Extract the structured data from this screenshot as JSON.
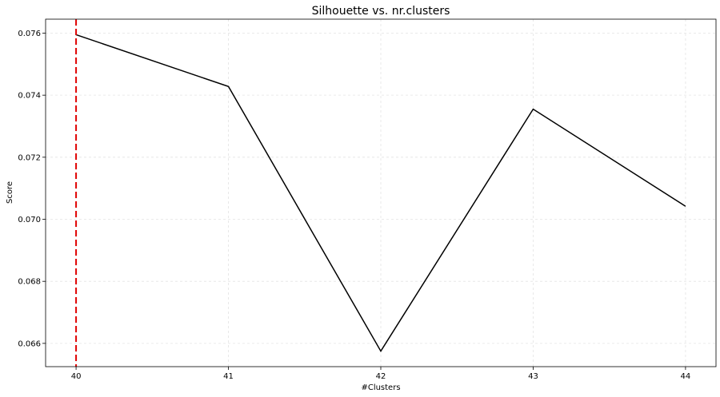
{
  "chart_data": {
    "type": "line",
    "title": "Silhouette vs. nr.clusters",
    "xlabel": "#Clusters",
    "ylabel": "Score",
    "x": [
      40,
      41,
      42,
      43,
      44
    ],
    "series": [
      {
        "values": [
          0.07595,
          0.07428,
          0.06575,
          0.07355,
          0.07042
        ],
        "color": "#000000"
      }
    ],
    "xticks": [
      40,
      41,
      42,
      43,
      44
    ],
    "xtick_labels": [
      "40",
      "41",
      "42",
      "43",
      "44"
    ],
    "yticks": [
      0.066,
      0.068,
      0.07,
      0.072,
      0.074,
      0.076
    ],
    "ytick_labels": [
      "0.066",
      "0.068",
      "0.070",
      "0.072",
      "0.074",
      "0.076"
    ],
    "xlim": [
      39.8,
      44.2
    ],
    "ylim": [
      0.06525,
      0.07645
    ],
    "grid": true,
    "marker_line": {
      "x": 40,
      "color": "#e00000",
      "style": "dashed"
    }
  }
}
